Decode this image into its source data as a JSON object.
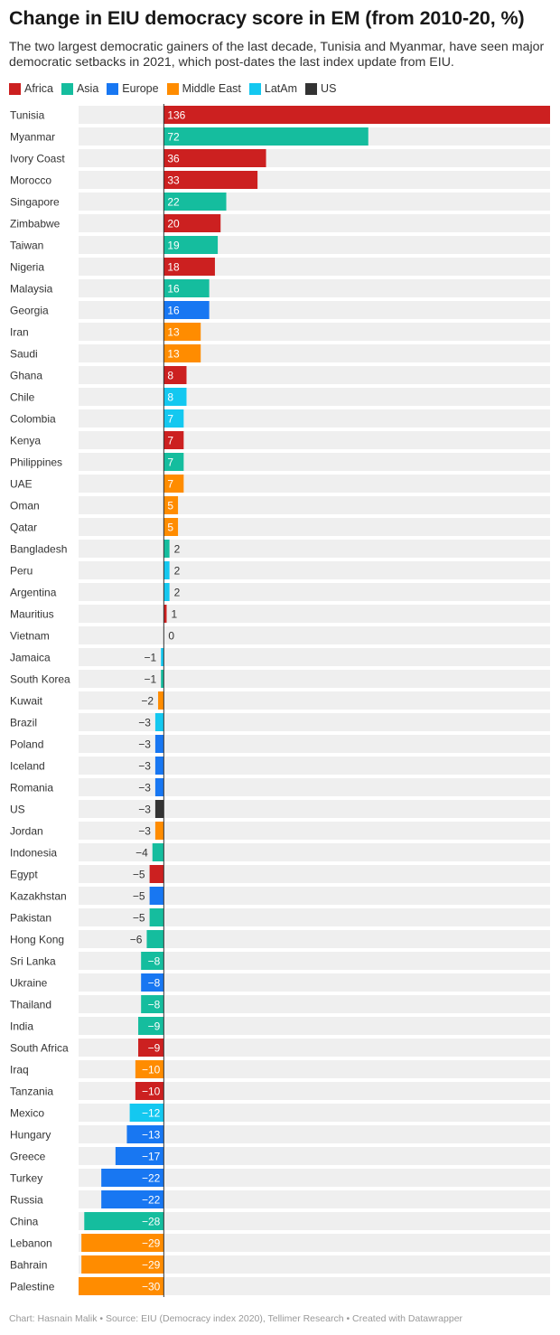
{
  "title": "Change in EIU democracy score in EM (from 2010-20, %)",
  "subtitle": "The two largest democratic gainers of the last decade, Tunisia and Myanmar, have seen major democratic setbacks in 2021, which post-dates the last index update from EIU.",
  "footer": "Chart: Hasnain Malik • Source: EIU (Democracy index 2020), Tellimer Research • Created with Datawrapper",
  "colors": {
    "Africa": "#cc2020",
    "Asia": "#15bd9e",
    "Europe": "#1877f2",
    "Middle East": "#ff8c00",
    "LatAm": "#14c8f0",
    "US": "#333333"
  },
  "chart_data": {
    "type": "bar",
    "orientation": "horizontal",
    "legend": [
      "Africa",
      "Asia",
      "Europe",
      "Middle East",
      "LatAm",
      "US"
    ],
    "legend_position": "top-left",
    "categories": [
      "Tunisia",
      "Myanmar",
      "Ivory Coast",
      "Morocco",
      "Singapore",
      "Zimbabwe",
      "Taiwan",
      "Nigeria",
      "Malaysia",
      "Georgia",
      "Iran",
      "Saudi",
      "Ghana",
      "Chile",
      "Colombia",
      "Kenya",
      "Philippines",
      "UAE",
      "Oman",
      "Qatar",
      "Bangladesh",
      "Peru",
      "Argentina",
      "Mauritius",
      "Vietnam",
      "Jamaica",
      "South Korea",
      "Kuwait",
      "Brazil",
      "Poland",
      "Iceland",
      "Romania",
      "US",
      "Jordan",
      "Indonesia",
      "Egypt",
      "Kazakhstan",
      "Pakistan",
      "Hong Kong",
      "Sri Lanka",
      "Ukraine",
      "Thailand",
      "India",
      "South Africa",
      "Iraq",
      "Tanzania",
      "Mexico",
      "Hungary",
      "Greece",
      "Turkey",
      "Russia",
      "China",
      "Lebanon",
      "Bahrain",
      "Palestine"
    ],
    "values": [
      136,
      72,
      36,
      33,
      22,
      20,
      19,
      18,
      16,
      16,
      13,
      13,
      8,
      8,
      7,
      7,
      7,
      7,
      5,
      5,
      2,
      2,
      2,
      1,
      0,
      -1,
      -1,
      -2,
      -3,
      -3,
      -3,
      -3,
      -3,
      -3,
      -4,
      -5,
      -5,
      -5,
      -6,
      -8,
      -8,
      -8,
      -9,
      -9,
      -10,
      -10,
      -12,
      -13,
      -17,
      -22,
      -22,
      -28,
      -29,
      -29,
      -30
    ],
    "labels": [
      "136",
      "72",
      "36",
      "33",
      "22",
      "20",
      "19",
      "18",
      "16",
      "16",
      "13",
      "13",
      "8",
      "8",
      "7",
      "7",
      "7",
      "7",
      "5",
      "5",
      "2",
      "2",
      "2",
      "1",
      "0",
      "−1",
      "−1",
      "−2",
      "−3",
      "−3",
      "−3",
      "−3",
      "−3",
      "−3",
      "−4",
      "−5",
      "−5",
      "−5",
      "−6",
      "−8",
      "−8",
      "−8",
      "−9",
      "−9",
      "−10",
      "−10",
      "−12",
      "−13",
      "−17",
      "−22",
      "−22",
      "−28",
      "−29",
      "−29",
      "−30"
    ],
    "regions": [
      "Africa",
      "Asia",
      "Africa",
      "Africa",
      "Asia",
      "Africa",
      "Asia",
      "Africa",
      "Asia",
      "Europe",
      "Middle East",
      "Middle East",
      "Africa",
      "LatAm",
      "LatAm",
      "Africa",
      "Asia",
      "Middle East",
      "Middle East",
      "Middle East",
      "Asia",
      "LatAm",
      "LatAm",
      "Africa",
      "Asia",
      "LatAm",
      "Asia",
      "Middle East",
      "LatAm",
      "Europe",
      "Europe",
      "Europe",
      "US",
      "Middle East",
      "Asia",
      "Africa",
      "Europe",
      "Asia",
      "Asia",
      "Asia",
      "Europe",
      "Asia",
      "Asia",
      "Africa",
      "Middle East",
      "Africa",
      "LatAm",
      "Europe",
      "Europe",
      "Europe",
      "Europe",
      "Asia",
      "Middle East",
      "Middle East",
      "Middle East"
    ],
    "xlim": [
      -30,
      136
    ]
  }
}
